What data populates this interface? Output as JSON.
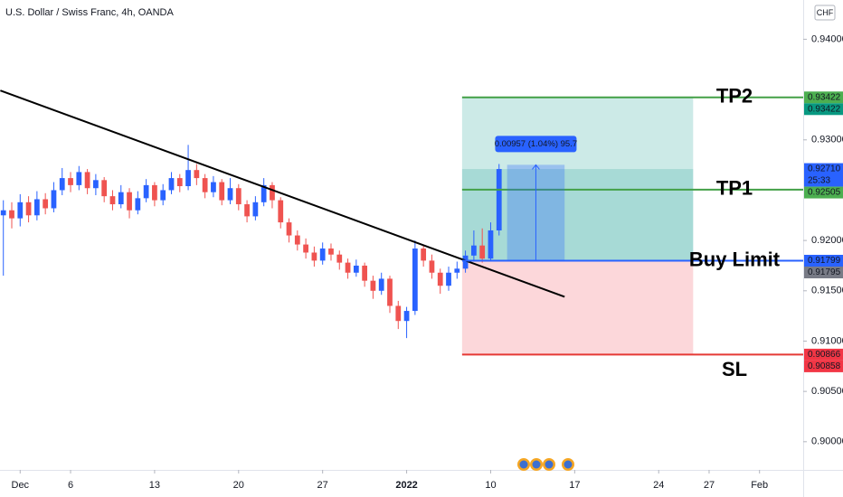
{
  "header": {
    "title": "U.S. Dollar / Swiss Franc, 4h, OANDA",
    "currency": "CHF"
  },
  "chart_data": {
    "type": "candlestick",
    "x": [
      -1,
      -0.5,
      0,
      0.5,
      1,
      1.5,
      2,
      2.5,
      3,
      3.5,
      4,
      4.5,
      5,
      5.5,
      6,
      6.5,
      7,
      7.5,
      8,
      8.5,
      9,
      9.5,
      10,
      10.5,
      11,
      11.5,
      12,
      12.5,
      13,
      13.5,
      14,
      14.5,
      15,
      15.5,
      16,
      16.5,
      17,
      17.5,
      18,
      18.5,
      19,
      19.5,
      20,
      20.5,
      21,
      21.5,
      22,
      22.5,
      23,
      23.5,
      24,
      24.5,
      25,
      25.5,
      26,
      26.5,
      27,
      27.5,
      28,
      28.5
    ],
    "open": [
      0.9225,
      0.923,
      0.9222,
      0.9238,
      0.9225,
      0.9241,
      0.9232,
      0.925,
      0.9262,
      0.9255,
      0.9268,
      0.9252,
      0.926,
      0.9244,
      0.9236,
      0.9248,
      0.923,
      0.9242,
      0.9255,
      0.924,
      0.925,
      0.9262,
      0.9254,
      0.927,
      0.9262,
      0.9248,
      0.9258,
      0.924,
      0.9252,
      0.9236,
      0.9224,
      0.9238,
      0.9255,
      0.924,
      0.9218,
      0.9205,
      0.9196,
      0.9188,
      0.918,
      0.9192,
      0.9186,
      0.9178,
      0.9168,
      0.9175,
      0.916,
      0.915,
      0.9162,
      0.9135,
      0.912,
      0.913,
      0.9192,
      0.918,
      0.9168,
      0.9155,
      0.9168,
      0.9172,
      0.9185,
      0.9195,
      0.9182,
      0.921
    ],
    "high": [
      0.924,
      0.9238,
      0.9246,
      0.9244,
      0.9249,
      0.9247,
      0.9258,
      0.9272,
      0.9268,
      0.9274,
      0.9271,
      0.9266,
      0.9263,
      0.925,
      0.9255,
      0.9252,
      0.9249,
      0.9261,
      0.9258,
      0.9256,
      0.9268,
      0.9266,
      0.9295,
      0.9276,
      0.9266,
      0.9264,
      0.9261,
      0.9262,
      0.9256,
      0.924,
      0.9244,
      0.9262,
      0.9258,
      0.9243,
      0.9222,
      0.921,
      0.9202,
      0.9194,
      0.9198,
      0.9197,
      0.919,
      0.9182,
      0.9181,
      0.9178,
      0.9165,
      0.9168,
      0.9165,
      0.914,
      0.9134,
      0.92,
      0.9196,
      0.9186,
      0.9172,
      0.9174,
      0.9179,
      0.919,
      0.921,
      0.9212,
      0.9218,
      0.9276
    ],
    "low": [
      0.9165,
      0.9212,
      0.9214,
      0.9218,
      0.922,
      0.9226,
      0.9228,
      0.9245,
      0.9248,
      0.925,
      0.9246,
      0.9245,
      0.9238,
      0.923,
      0.9232,
      0.9222,
      0.9226,
      0.9238,
      0.9234,
      0.9235,
      0.9246,
      0.9248,
      0.925,
      0.9255,
      0.9242,
      0.9243,
      0.9235,
      0.9236,
      0.923,
      0.9218,
      0.922,
      0.9234,
      0.9232,
      0.9212,
      0.9198,
      0.919,
      0.9182,
      0.9174,
      0.9176,
      0.918,
      0.9171,
      0.9162,
      0.9164,
      0.9154,
      0.9142,
      0.9146,
      0.9128,
      0.9112,
      0.9103,
      0.9126,
      0.9174,
      0.9162,
      0.9147,
      0.915,
      0.9162,
      0.9168,
      0.918,
      0.9178,
      0.9179,
      0.9205
    ],
    "close": [
      0.923,
      0.9222,
      0.9238,
      0.9225,
      0.9241,
      0.9232,
      0.925,
      0.9262,
      0.9255,
      0.9268,
      0.9252,
      0.926,
      0.9244,
      0.9236,
      0.9248,
      0.923,
      0.9242,
      0.9255,
      0.924,
      0.925,
      0.9262,
      0.9254,
      0.927,
      0.9262,
      0.9248,
      0.9258,
      0.924,
      0.9252,
      0.9236,
      0.9224,
      0.9238,
      0.9255,
      0.924,
      0.9218,
      0.9205,
      0.9196,
      0.9188,
      0.918,
      0.9192,
      0.9186,
      0.9178,
      0.9168,
      0.9175,
      0.916,
      0.915,
      0.9162,
      0.9135,
      0.912,
      0.913,
      0.9192,
      0.918,
      0.9168,
      0.9155,
      0.9168,
      0.9172,
      0.9185,
      0.9195,
      0.9182,
      0.921,
      0.9271
    ],
    "up_color": "#2962ff",
    "down_color": "#ef5350",
    "xlim": [
      -1.2,
      46.6
    ],
    "ylim": [
      0.8972,
      0.9439
    ],
    "xticks": [
      {
        "value": 0,
        "label": "Dec"
      },
      {
        "value": 3,
        "label": "6"
      },
      {
        "value": 8,
        "label": "13"
      },
      {
        "value": 13,
        "label": "20"
      },
      {
        "value": 18,
        "label": "27"
      },
      {
        "value": 23,
        "label": "2022"
      },
      {
        "value": 28,
        "label": "10"
      },
      {
        "value": 33,
        "label": "17"
      },
      {
        "value": 38,
        "label": "24"
      },
      {
        "value": 41,
        "label": "27"
      },
      {
        "value": 44,
        "label": "Feb"
      }
    ],
    "yticks": [
      {
        "value": 0.94,
        "label": "0.94000"
      },
      {
        "value": 0.93,
        "label": "0.93000"
      },
      {
        "value": 0.92,
        "label": "0.92000"
      },
      {
        "value": 0.915,
        "label": "0.91500"
      },
      {
        "value": 0.91,
        "label": "0.91000"
      },
      {
        "value": 0.905,
        "label": "0.90500"
      },
      {
        "value": 0.9,
        "label": "0.90000"
      }
    ],
    "trendline": {
      "x": [
        -1.18,
        32.4
      ],
      "y": [
        0.9349,
        0.9144
      ],
      "color": "#000000"
    },
    "levels": [
      {
        "name": "TP2",
        "value": 0.93422,
        "color": "#43a047"
      },
      {
        "name": "TP1",
        "value": 0.92505,
        "color": "#43a047"
      },
      {
        "name": "Buy Limit",
        "value": 0.91799,
        "color": "#2962ff"
      },
      {
        "name": "SL",
        "value": 0.90866,
        "color": "#e53935"
      }
    ],
    "position": {
      "start": 26.3,
      "end": 40.05
    },
    "measure": {
      "start": 28.98,
      "end": 32.4,
      "from": 0.91795,
      "to": 0.92752,
      "label": "0.00957 (1.04%) 95.7"
    },
    "price_labels": [
      {
        "value": 0.93422,
        "label": "0.93422",
        "color": "#4caf50"
      },
      {
        "value": 0.93422,
        "label": "0.93422",
        "color": "#089981"
      },
      {
        "value": 0.9271,
        "label": "0.92710",
        "color": "#2962ff",
        "countdown": "25:33"
      },
      {
        "value": 0.92505,
        "label": "0.92505",
        "color": "#4caf50"
      },
      {
        "value": 0.91799,
        "label": "0.91799",
        "color": "#2962ff"
      },
      {
        "value": 0.91795,
        "label": "0.91795",
        "color": "#787b86"
      },
      {
        "value": 0.90866,
        "label": "0.90866",
        "color": "#f23645"
      },
      {
        "value": 0.90858,
        "label": "0.90858",
        "color": "#f23645"
      }
    ]
  }
}
